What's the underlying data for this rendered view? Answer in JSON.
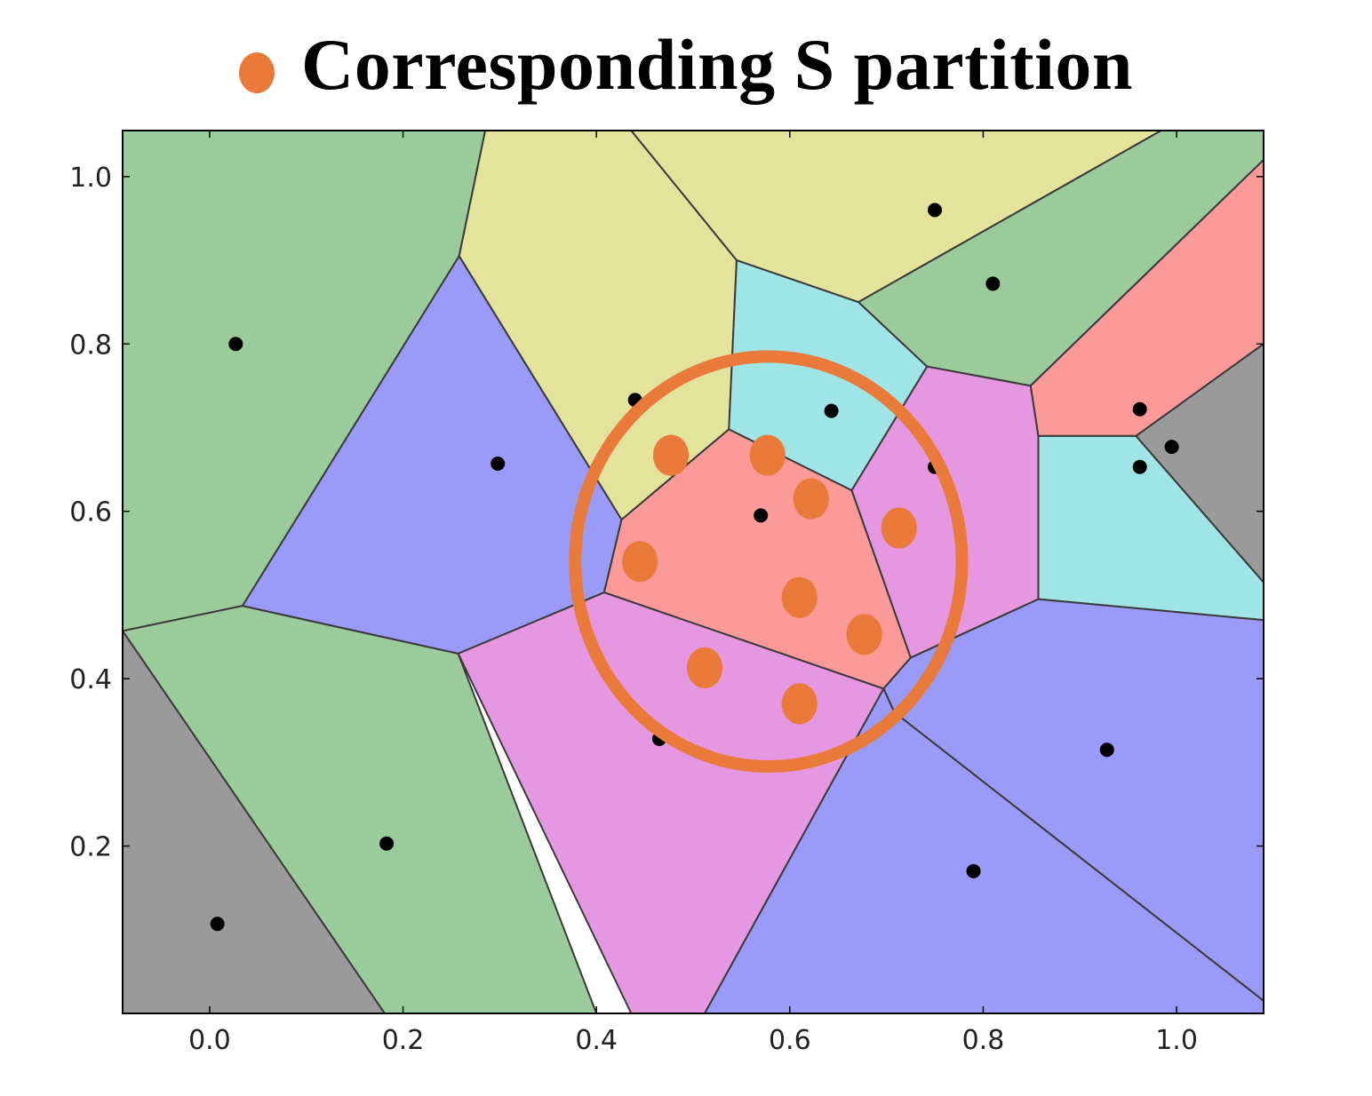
{
  "legend": {
    "label": "Corresponding S partition",
    "marker_color": "#E97A3A"
  },
  "chart_data": {
    "type": "scatter",
    "title": "",
    "xlabel": "",
    "ylabel": "",
    "xlim": [
      -0.09,
      1.09
    ],
    "ylim": [
      0.0,
      1.055
    ],
    "grid": false,
    "x_ticks": [
      0.0,
      0.2,
      0.4,
      0.6,
      0.8,
      1.0
    ],
    "y_ticks": [
      0.2,
      0.4,
      0.6,
      0.8,
      1.0
    ],
    "x_tick_labels": [
      "0.0",
      "0.2",
      "0.4",
      "0.6",
      "0.8",
      "1.0"
    ],
    "y_tick_labels": [
      "0.2",
      "0.4",
      "0.6",
      "0.8",
      "1.0"
    ],
    "region_colors": {
      "green": "#9BCB9B",
      "yellow": "#E4E39C",
      "blue": "#9A9BF9",
      "cyan": "#9FE5E5",
      "pink": "#E597E2",
      "red": "#FB9A99",
      "gray": "#9A9A9A"
    },
    "regions": [
      {
        "color": "green",
        "vertices": [
          [
            -0.09,
            1.055
          ],
          [
            0.285,
            1.055
          ],
          [
            0.258,
            0.905
          ],
          [
            0.034,
            0.487
          ],
          [
            -0.09,
            0.457
          ]
        ]
      },
      {
        "color": "green",
        "vertices": [
          [
            -0.09,
            0.457
          ],
          [
            0.034,
            0.487
          ],
          [
            0.257,
            0.43
          ],
          [
            0.4,
            0.0
          ],
          [
            0.181,
            0.0
          ]
        ]
      },
      {
        "color": "gray",
        "vertices": [
          [
            -0.09,
            0.457
          ],
          [
            0.181,
            0.0
          ],
          [
            -0.09,
            0.0
          ]
        ]
      },
      {
        "color": "yellow",
        "vertices": [
          [
            0.285,
            1.055
          ],
          [
            0.436,
            1.055
          ],
          [
            0.545,
            0.9
          ],
          [
            0.537,
            0.698
          ],
          [
            0.426,
            0.59
          ],
          [
            0.258,
            0.905
          ]
        ]
      },
      {
        "color": "yellow",
        "vertices": [
          [
            0.436,
            1.055
          ],
          [
            0.984,
            1.055
          ],
          [
            0.671,
            0.85
          ],
          [
            0.545,
            0.9
          ]
        ]
      },
      {
        "color": "blue",
        "vertices": [
          [
            0.258,
            0.905
          ],
          [
            0.426,
            0.59
          ],
          [
            0.408,
            0.503
          ],
          [
            0.257,
            0.43
          ],
          [
            0.034,
            0.487
          ]
        ]
      },
      {
        "color": "cyan",
        "vertices": [
          [
            0.545,
            0.9
          ],
          [
            0.671,
            0.85
          ],
          [
            0.742,
            0.773
          ],
          [
            0.664,
            0.625
          ],
          [
            0.537,
            0.698
          ]
        ]
      },
      {
        "color": "green",
        "vertices": [
          [
            0.984,
            1.055
          ],
          [
            1.09,
            1.055
          ],
          [
            1.09,
            1.02
          ],
          [
            0.849,
            0.75
          ],
          [
            0.742,
            0.773
          ],
          [
            0.671,
            0.85
          ]
        ]
      },
      {
        "color": "red",
        "vertices": [
          [
            1.09,
            1.02
          ],
          [
            1.09,
            0.8
          ],
          [
            0.958,
            0.69
          ],
          [
            0.857,
            0.69
          ],
          [
            0.849,
            0.75
          ]
        ]
      },
      {
        "color": "gray",
        "vertices": [
          [
            1.09,
            0.8
          ],
          [
            1.09,
            0.515
          ],
          [
            0.958,
            0.69
          ]
        ]
      },
      {
        "color": "cyan",
        "vertices": [
          [
            0.857,
            0.69
          ],
          [
            0.958,
            0.69
          ],
          [
            1.09,
            0.515
          ],
          [
            1.09,
            0.47
          ],
          [
            0.857,
            0.495
          ]
        ]
      },
      {
        "color": "pink",
        "vertices": [
          [
            0.742,
            0.773
          ],
          [
            0.849,
            0.75
          ],
          [
            0.857,
            0.69
          ],
          [
            0.857,
            0.495
          ],
          [
            0.725,
            0.425
          ],
          [
            0.664,
            0.625
          ]
        ]
      },
      {
        "color": "red",
        "vertices": [
          [
            0.537,
            0.698
          ],
          [
            0.664,
            0.625
          ],
          [
            0.725,
            0.425
          ],
          [
            0.697,
            0.388
          ],
          [
            0.408,
            0.503
          ],
          [
            0.426,
            0.59
          ]
        ]
      },
      {
        "color": "pink",
        "vertices": [
          [
            0.408,
            0.503
          ],
          [
            0.697,
            0.388
          ],
          [
            0.512,
            0.0
          ],
          [
            0.436,
            0.0
          ],
          [
            0.257,
            0.43
          ]
        ]
      },
      {
        "color": "blue",
        "vertices": [
          [
            0.697,
            0.388
          ],
          [
            0.725,
            0.425
          ],
          [
            0.857,
            0.495
          ],
          [
            1.09,
            0.47
          ],
          [
            1.09,
            0.015
          ],
          [
            0.708,
            0.36
          ]
        ]
      },
      {
        "color": "blue",
        "vertices": [
          [
            0.708,
            0.36
          ],
          [
            1.09,
            0.015
          ],
          [
            1.09,
            0.0
          ],
          [
            0.512,
            0.0
          ],
          [
            0.697,
            0.388
          ]
        ]
      }
    ],
    "series": [
      {
        "color": "#000000",
        "marker": "circle",
        "points": [
          [
            0.027,
            0.8
          ],
          [
            0.298,
            0.657
          ],
          [
            0.44,
            0.733
          ],
          [
            0.57,
            0.595
          ],
          [
            0.643,
            0.72
          ],
          [
            0.75,
            0.96
          ],
          [
            0.81,
            0.872
          ],
          [
            0.75,
            0.653
          ],
          [
            0.962,
            0.722
          ],
          [
            0.962,
            0.653
          ],
          [
            0.995,
            0.677
          ],
          [
            0.465,
            0.328
          ],
          [
            0.928,
            0.315
          ],
          [
            0.79,
            0.17
          ],
          [
            0.183,
            0.203
          ],
          [
            0.008,
            0.107
          ]
        ]
      },
      {
        "color": "#E97A3A",
        "marker": "circle",
        "points": [
          [
            0.477,
            0.667
          ],
          [
            0.577,
            0.667
          ],
          [
            0.622,
            0.615
          ],
          [
            0.713,
            0.58
          ],
          [
            0.445,
            0.54
          ],
          [
            0.61,
            0.497
          ],
          [
            0.677,
            0.453
          ],
          [
            0.512,
            0.413
          ],
          [
            0.61,
            0.37
          ]
        ]
      }
    ],
    "annotations": [
      {
        "type": "ellipse",
        "color": "#E97A3A",
        "center": [
          0.578,
          0.54
        ],
        "radius_x": 0.2,
        "radius_y": 0.245
      }
    ]
  }
}
